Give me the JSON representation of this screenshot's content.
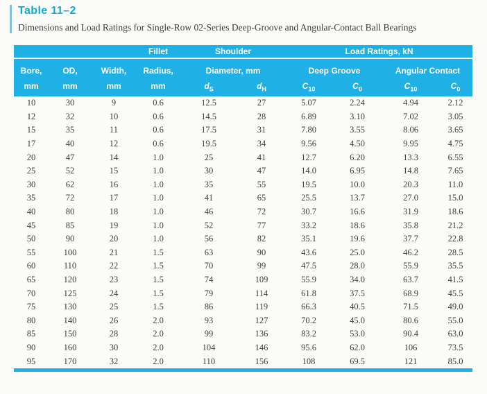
{
  "title": "Table 11–2",
  "subtitle": "Dimensions and Load Ratings for Single-Row 02-Series Deep-Groove and Angular-Contact Ball Bearings",
  "colors": {
    "accent_cyan": "#1fb0e5",
    "title_cyan": "#0aaadf",
    "caption_bar": "#7cc2df",
    "body_text": "#3d3d3d"
  },
  "header": {
    "fillet": "Fillet",
    "shoulder": "Shoulder",
    "load_ratings": "Load Ratings, kN",
    "bore": "Bore,",
    "od": "OD,",
    "width": "Width,",
    "radius": "Radius,",
    "diameter": "Diameter, mm",
    "deep_groove": "Deep Groove",
    "angular_contact": "Angular Contact",
    "units": [
      "mm",
      "mm",
      "mm",
      "mm"
    ],
    "symbols": [
      {
        "base": "d",
        "sub": "S"
      },
      {
        "base": "d",
        "sub": "H"
      },
      {
        "base": "C",
        "sub": "10"
      },
      {
        "base": "C",
        "sub": "0"
      },
      {
        "base": "C",
        "sub": "10"
      },
      {
        "base": "C",
        "sub": "0"
      }
    ]
  },
  "rows": [
    [
      "10",
      "30",
      "9",
      "0.6",
      "12.5",
      "27",
      "5.07",
      "2.24",
      "4.94",
      "2.12"
    ],
    [
      "12",
      "32",
      "10",
      "0.6",
      "14.5",
      "28",
      "6.89",
      "3.10",
      "7.02",
      "3.05"
    ],
    [
      "15",
      "35",
      "11",
      "0.6",
      "17.5",
      "31",
      "7.80",
      "3.55",
      "8.06",
      "3.65"
    ],
    [
      "17",
      "40",
      "12",
      "0.6",
      "19.5",
      "34",
      "9.56",
      "4.50",
      "9.95",
      "4.75"
    ],
    [
      "20",
      "47",
      "14",
      "1.0",
      "25",
      "41",
      "12.7",
      "6.20",
      "13.3",
      "6.55"
    ],
    [
      "25",
      "52",
      "15",
      "1.0",
      "30",
      "47",
      "14.0",
      "6.95",
      "14.8",
      "7.65"
    ],
    [
      "30",
      "62",
      "16",
      "1.0",
      "35",
      "55",
      "19.5",
      "10.0",
      "20.3",
      "11.0"
    ],
    [
      "35",
      "72",
      "17",
      "1.0",
      "41",
      "65",
      "25.5",
      "13.7",
      "27.0",
      "15.0"
    ],
    [
      "40",
      "80",
      "18",
      "1.0",
      "46",
      "72",
      "30.7",
      "16.6",
      "31.9",
      "18.6"
    ],
    [
      "45",
      "85",
      "19",
      "1.0",
      "52",
      "77",
      "33.2",
      "18.6",
      "35.8",
      "21.2"
    ],
    [
      "50",
      "90",
      "20",
      "1.0",
      "56",
      "82",
      "35.1",
      "19.6",
      "37.7",
      "22.8"
    ],
    [
      "55",
      "100",
      "21",
      "1.5",
      "63",
      "90",
      "43.6",
      "25.0",
      "46.2",
      "28.5"
    ],
    [
      "60",
      "110",
      "22",
      "1.5",
      "70",
      "99",
      "47.5",
      "28.0",
      "55.9",
      "35.5"
    ],
    [
      "65",
      "120",
      "23",
      "1.5",
      "74",
      "109",
      "55.9",
      "34.0",
      "63.7",
      "41.5"
    ],
    [
      "70",
      "125",
      "24",
      "1.5",
      "79",
      "114",
      "61.8",
      "37.5",
      "68.9",
      "45.5"
    ],
    [
      "75",
      "130",
      "25",
      "1.5",
      "86",
      "119",
      "66.3",
      "40.5",
      "71.5",
      "49.0"
    ],
    [
      "80",
      "140",
      "26",
      "2.0",
      "93",
      "127",
      "70.2",
      "45.0",
      "80.6",
      "55.0"
    ],
    [
      "85",
      "150",
      "28",
      "2.0",
      "99",
      "136",
      "83.2",
      "53.0",
      "90.4",
      "63.0"
    ],
    [
      "90",
      "160",
      "30",
      "2.0",
      "104",
      "146",
      "95.6",
      "62.0",
      "106",
      "73.5"
    ],
    [
      "95",
      "170",
      "32",
      "2.0",
      "110",
      "156",
      "108",
      "69.5",
      "121",
      "85.0"
    ]
  ]
}
